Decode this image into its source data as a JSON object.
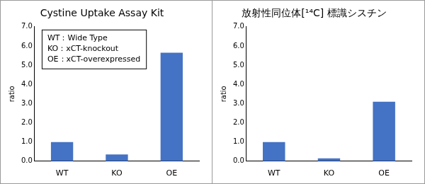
{
  "chart_data": [
    {
      "type": "bar",
      "title": "Cystine Uptake Assay Kit",
      "y_label": "ratio",
      "annotations": [
        "WT：Wide Type",
        "KO：xCT-knockout",
        "OE：xCT-overexpressed"
      ],
      "categories": [
        "WT",
        "KO",
        "OE"
      ],
      "values": [
        1.0,
        0.35,
        5.65
      ],
      "color": "#4472c4",
      "ylim": [
        0,
        7
      ],
      "yticks": [
        {
          "value": 0,
          "label": "0.0"
        },
        {
          "value": 1,
          "label": "1.0"
        },
        {
          "value": 2,
          "label": "2.0"
        },
        {
          "value": 3,
          "label": "3.0"
        },
        {
          "value": 4,
          "label": "4.0"
        },
        {
          "value": 5,
          "label": "5.0"
        },
        {
          "value": 6,
          "label": "6.0"
        },
        {
          "value": 7,
          "label": "7.0"
        }
      ],
      "grid": false
    },
    {
      "type": "bar",
      "title": "放射性同位体[¹⁴C] 標識シスチン",
      "y_label": "ratio",
      "categories": [
        "WT",
        "KO",
        "OE"
      ],
      "values": [
        1.0,
        0.15,
        3.1
      ],
      "color": "#4472c4",
      "ylim": [
        0,
        7
      ],
      "yticks": [
        {
          "value": 0,
          "label": "0.0"
        },
        {
          "value": 1,
          "label": "1.0"
        },
        {
          "value": 2,
          "label": "2.0"
        },
        {
          "value": 3,
          "label": "3.0"
        },
        {
          "value": 4,
          "label": "4.0"
        },
        {
          "value": 5,
          "label": "5.0"
        },
        {
          "value": 6,
          "label": "6.0"
        },
        {
          "value": 7,
          "label": "7.0"
        }
      ],
      "grid": false
    }
  ]
}
